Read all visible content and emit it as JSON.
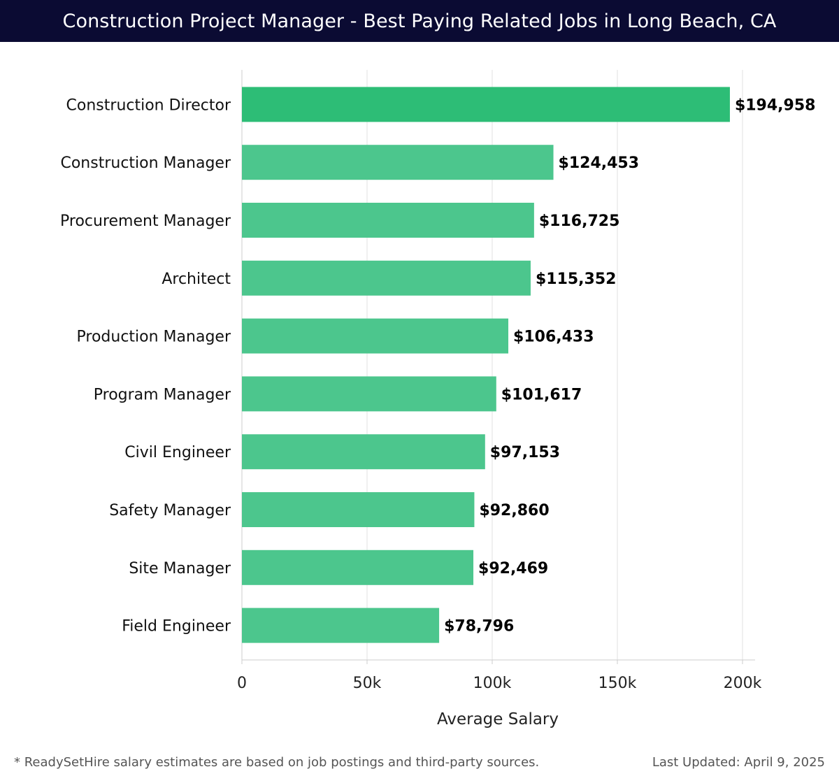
{
  "header": {
    "title": "Construction Project Manager - Best Paying Related Jobs in Long Beach, CA"
  },
  "chart_data": {
    "type": "bar",
    "orientation": "horizontal",
    "title": "Construction Project Manager - Best Paying Related Jobs in Long Beach, CA",
    "xlabel": "Average Salary",
    "ylabel": "",
    "xlim": [
      0,
      200000
    ],
    "xticks": [
      0,
      50000,
      100000,
      150000,
      200000
    ],
    "xtick_labels": [
      "0",
      "50k",
      "100k",
      "150k",
      "200k"
    ],
    "grid": true,
    "categories": [
      "Construction Director",
      "Construction Manager",
      "Procurement Manager",
      "Architect",
      "Production Manager",
      "Program Manager",
      "Civil Engineer",
      "Safety Manager",
      "Site Manager",
      "Field Engineer"
    ],
    "values": [
      194958,
      124453,
      116725,
      115352,
      106433,
      101617,
      97153,
      92860,
      92469,
      78796
    ],
    "value_labels": [
      "$194,958",
      "$124,453",
      "$116,725",
      "$115,352",
      "$106,433",
      "$101,617",
      "$97,153",
      "$92,860",
      "$92,469",
      "$78,796"
    ],
    "colors": {
      "top_bar": "#2dbd76",
      "bar": "#4cc68d",
      "grid": "#e2e2e2",
      "axis": "#cccccc"
    }
  },
  "footer": {
    "note": "* ReadySetHire salary estimates are based on job postings and third-party sources.",
    "updated": "Last Updated: April 9, 2025"
  }
}
